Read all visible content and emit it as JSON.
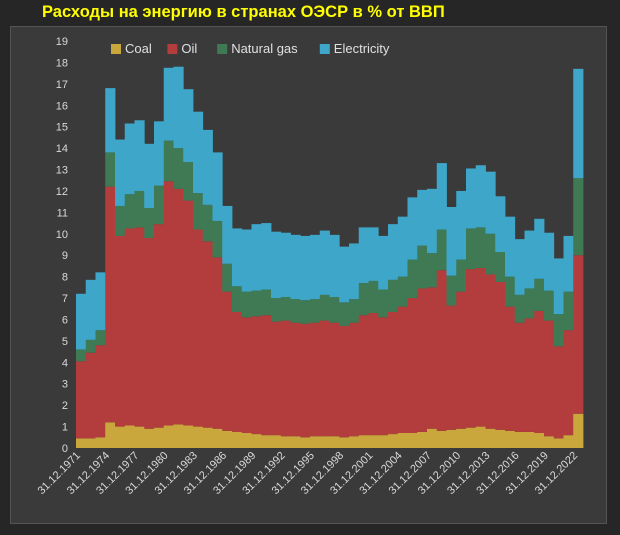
{
  "title": "Расходы на энергию в странах ОЭСР в % от ВВП",
  "chart_data": {
    "type": "bar",
    "stacked": true,
    "title": "Расходы на энергию в странах ОЭСР в % от ВВП",
    "xlabel": "",
    "ylabel": "",
    "ylim": [
      0,
      19
    ],
    "yticks": [
      0,
      1,
      2,
      3,
      4,
      5,
      6,
      7,
      8,
      9,
      10,
      11,
      12,
      13,
      14,
      15,
      16,
      17,
      18,
      19
    ],
    "grid": false,
    "legend": "top-left",
    "categories": [
      "1971",
      "1972",
      "1973",
      "1974",
      "1975",
      "1976",
      "1977",
      "1978",
      "1979",
      "1980",
      "1981",
      "1982",
      "1983",
      "1984",
      "1985",
      "1986",
      "1987",
      "1988",
      "1989",
      "1990",
      "1991",
      "1992",
      "1993",
      "1994",
      "1995",
      "1996",
      "1997",
      "1998",
      "1999",
      "2000",
      "2001",
      "2002",
      "2003",
      "2004",
      "2005",
      "2006",
      "2007",
      "2008",
      "2009",
      "2010",
      "2011",
      "2012",
      "2013",
      "2014",
      "2015",
      "2016",
      "2017",
      "2018",
      "2019",
      "2020",
      "2021",
      "2022"
    ],
    "x_tick_labels": [
      "31.12.1971",
      "31.12.1974",
      "31.12.1977",
      "31.12.1980",
      "31.12.1983",
      "31.12.1986",
      "31.12.1989",
      "31.12.1992",
      "31.12.1995",
      "31.12.1998",
      "31.12.2001",
      "31.12.2004",
      "31.12.2007",
      "31.12.2010",
      "31.12.2013",
      "31.12.2016",
      "31.12.2019",
      "31.12.2022"
    ],
    "series": [
      {
        "name": "Coal",
        "color": "#c9a73c",
        "values": [
          0.45,
          0.45,
          0.5,
          1.2,
          1.0,
          1.05,
          1.0,
          0.9,
          0.95,
          1.05,
          1.1,
          1.05,
          1.0,
          0.95,
          0.9,
          0.8,
          0.75,
          0.7,
          0.65,
          0.6,
          0.6,
          0.55,
          0.55,
          0.5,
          0.55,
          0.55,
          0.55,
          0.5,
          0.55,
          0.6,
          0.6,
          0.6,
          0.65,
          0.7,
          0.7,
          0.75,
          0.9,
          0.8,
          0.85,
          0.9,
          0.95,
          1.0,
          0.9,
          0.85,
          0.8,
          0.75,
          0.75,
          0.7,
          0.55,
          0.45,
          0.6,
          1.6
        ]
      },
      {
        "name": "Oil",
        "color": "#b33c3c",
        "values": [
          3.6,
          4.0,
          4.3,
          11.0,
          8.9,
          9.2,
          9.3,
          8.9,
          9.5,
          11.4,
          11.0,
          10.5,
          9.2,
          8.7,
          8.0,
          6.5,
          5.6,
          5.4,
          5.5,
          5.6,
          5.3,
          5.4,
          5.3,
          5.3,
          5.3,
          5.4,
          5.3,
          5.2,
          5.3,
          5.6,
          5.7,
          5.5,
          5.7,
          5.9,
          6.3,
          6.7,
          6.6,
          7.5,
          5.8,
          6.4,
          7.4,
          7.4,
          7.2,
          6.9,
          5.8,
          5.1,
          5.3,
          5.7,
          5.4,
          4.3,
          4.9,
          7.4
        ]
      },
      {
        "name": "Natural gas",
        "color": "#3f7a55",
        "values": [
          0.55,
          0.6,
          0.7,
          1.6,
          1.4,
          1.6,
          1.7,
          1.4,
          1.8,
          1.9,
          1.9,
          1.8,
          1.7,
          1.7,
          1.7,
          1.3,
          1.2,
          1.2,
          1.2,
          1.2,
          1.1,
          1.1,
          1.1,
          1.1,
          1.1,
          1.2,
          1.2,
          1.1,
          1.1,
          1.5,
          1.5,
          1.3,
          1.5,
          1.4,
          1.8,
          2.0,
          1.6,
          1.9,
          1.4,
          1.5,
          1.9,
          1.9,
          1.9,
          1.4,
          1.4,
          1.3,
          1.4,
          1.5,
          1.4,
          1.5,
          1.8,
          3.6
        ]
      },
      {
        "name": "Electricity",
        "color": "#3ea7c9",
        "values": [
          2.6,
          2.8,
          2.7,
          3.0,
          3.1,
          3.3,
          3.3,
          3.0,
          3.0,
          3.4,
          3.8,
          3.4,
          3.8,
          3.5,
          3.2,
          2.7,
          2.7,
          2.9,
          3.1,
          3.1,
          3.1,
          3.0,
          3.0,
          3.0,
          3.0,
          3.0,
          2.9,
          2.6,
          2.6,
          2.6,
          2.5,
          2.5,
          2.6,
          2.8,
          2.9,
          2.6,
          3.0,
          3.1,
          3.2,
          3.2,
          2.8,
          2.9,
          2.9,
          2.6,
          2.8,
          2.6,
          2.7,
          2.8,
          2.7,
          2.6,
          2.6,
          5.1
        ]
      }
    ]
  }
}
